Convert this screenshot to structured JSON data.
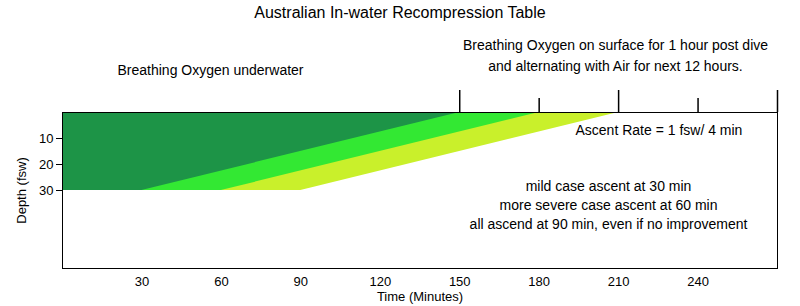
{
  "chart_data": {
    "type": "area",
    "title": "Australian In-water Recompression Table",
    "x_label": "Time (Minutes)",
    "y_label": "Depth (fsw)",
    "xlim": [
      0,
      270
    ],
    "xticks": [
      30,
      60,
      90,
      120,
      150,
      180,
      210,
      240
    ],
    "ylim": [
      0,
      60
    ],
    "yticks": [
      10,
      20,
      30
    ],
    "series": [
      {
        "color": "#c9f02b",
        "x": [
          0,
          90,
          210
        ],
        "values": [
          30,
          30,
          0
        ]
      },
      {
        "color": "#33e833",
        "x": [
          0,
          60,
          180
        ],
        "values": [
          30,
          30,
          0
        ]
      },
      {
        "color": "#1d9447",
        "x": [
          0,
          30,
          150
        ],
        "values": [
          30,
          30,
          0
        ]
      }
    ],
    "top_ticks": [
      150,
      180,
      210,
      240,
      270
    ],
    "annotations": {
      "underwater": "Breathing Oxygen underwater",
      "surface": [
        "Breathing Oxygen on surface for 1 hour post dive",
        "and alternating with Air for next 12 hours."
      ],
      "ascent_rate": "Ascent Rate = 1 fsw/ 4 min",
      "cases": [
        "mild case ascent at 30 min",
        "more severe case ascent at 60 min",
        "all ascend at 90 min, even if no improvement"
      ]
    }
  }
}
